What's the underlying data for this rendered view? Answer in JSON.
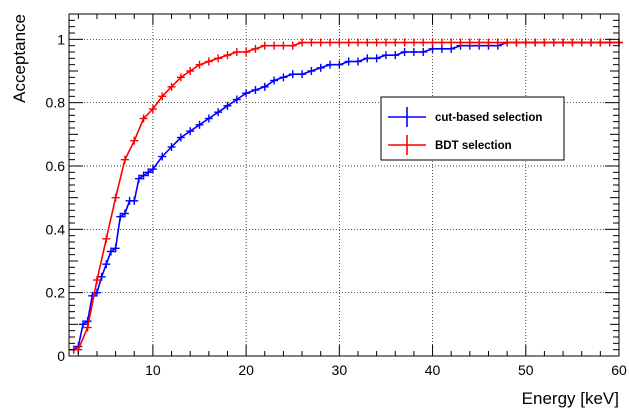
{
  "chart_data": {
    "type": "line",
    "title": "",
    "xlabel": "Energy [keV]",
    "ylabel": "Acceptance",
    "xlim": [
      1,
      60
    ],
    "ylim": [
      0,
      1.08
    ],
    "x_ticks": [
      10,
      20,
      30,
      40,
      50,
      60
    ],
    "x_tick_labels": [
      "10",
      "20",
      "30",
      "40",
      "50",
      "60"
    ],
    "y_ticks": [
      0,
      0.2,
      0.4,
      0.6,
      0.8,
      1.0
    ],
    "y_tick_labels": [
      "0",
      "0.2",
      "0.4",
      "0.6",
      "0.8",
      "1"
    ],
    "grid": true,
    "legend_position": "center-right",
    "series": [
      {
        "name": "cut-based selection",
        "color": "#0000ff",
        "points": [
          [
            1.5,
            0.02
          ],
          [
            2.0,
            0.03
          ],
          [
            2.5,
            0.1
          ],
          [
            3.0,
            0.11
          ],
          [
            3.5,
            0.19
          ],
          [
            4.0,
            0.2
          ],
          [
            4.5,
            0.25
          ],
          [
            5.0,
            0.29
          ],
          [
            5.5,
            0.33
          ],
          [
            6.0,
            0.34
          ],
          [
            6.5,
            0.44
          ],
          [
            7.0,
            0.45
          ],
          [
            7.5,
            0.49
          ],
          [
            8.0,
            0.49
          ],
          [
            8.5,
            0.56
          ],
          [
            9.0,
            0.57
          ],
          [
            9.5,
            0.58
          ],
          [
            10.0,
            0.59
          ],
          [
            11.0,
            0.63
          ],
          [
            12.0,
            0.66
          ],
          [
            13.0,
            0.69
          ],
          [
            14.0,
            0.71
          ],
          [
            15.0,
            0.73
          ],
          [
            16.0,
            0.75
          ],
          [
            17.0,
            0.77
          ],
          [
            18.0,
            0.79
          ],
          [
            19.0,
            0.81
          ],
          [
            20.0,
            0.83
          ],
          [
            21.0,
            0.84
          ],
          [
            22.0,
            0.85
          ],
          [
            23.0,
            0.87
          ],
          [
            24.0,
            0.88
          ],
          [
            25.0,
            0.89
          ],
          [
            26.0,
            0.89
          ],
          [
            27.0,
            0.9
          ],
          [
            28.0,
            0.91
          ],
          [
            29.0,
            0.92
          ],
          [
            30.0,
            0.92
          ],
          [
            31.0,
            0.93
          ],
          [
            32.0,
            0.93
          ],
          [
            33.0,
            0.94
          ],
          [
            34.0,
            0.94
          ],
          [
            35.0,
            0.95
          ],
          [
            36.0,
            0.95
          ],
          [
            37.0,
            0.96
          ],
          [
            38.0,
            0.96
          ],
          [
            39.0,
            0.96
          ],
          [
            40.0,
            0.97
          ],
          [
            41.0,
            0.97
          ],
          [
            42.0,
            0.97
          ],
          [
            43.0,
            0.98
          ],
          [
            44.0,
            0.98
          ],
          [
            45.0,
            0.98
          ],
          [
            46.0,
            0.98
          ],
          [
            47.0,
            0.98
          ],
          [
            48.0,
            0.99
          ],
          [
            49.0,
            0.99
          ],
          [
            50.0,
            0.99
          ],
          [
            51.0,
            0.99
          ],
          [
            52.0,
            0.99
          ],
          [
            53.0,
            0.99
          ],
          [
            54.0,
            0.99
          ],
          [
            55.0,
            0.99
          ],
          [
            56.0,
            0.99
          ],
          [
            57.0,
            0.99
          ],
          [
            58.0,
            0.99
          ],
          [
            59.0,
            0.99
          ],
          [
            60.0,
            0.99
          ]
        ]
      },
      {
        "name": "BDT selection",
        "color": "#ff0000",
        "points": [
          [
            1.5,
            0.02
          ],
          [
            2.0,
            0.02
          ],
          [
            3.0,
            0.09
          ],
          [
            4.0,
            0.24
          ],
          [
            5.0,
            0.37
          ],
          [
            6.0,
            0.5
          ],
          [
            7.0,
            0.62
          ],
          [
            8.0,
            0.68
          ],
          [
            9.0,
            0.75
          ],
          [
            10.0,
            0.78
          ],
          [
            11.0,
            0.82
          ],
          [
            12.0,
            0.85
          ],
          [
            13.0,
            0.88
          ],
          [
            14.0,
            0.9
          ],
          [
            15.0,
            0.92
          ],
          [
            16.0,
            0.93
          ],
          [
            17.0,
            0.94
          ],
          [
            18.0,
            0.95
          ],
          [
            19.0,
            0.96
          ],
          [
            20.0,
            0.96
          ],
          [
            21.0,
            0.97
          ],
          [
            22.0,
            0.98
          ],
          [
            23.0,
            0.98
          ],
          [
            24.0,
            0.98
          ],
          [
            25.0,
            0.98
          ],
          [
            26.0,
            0.99
          ],
          [
            27.0,
            0.99
          ],
          [
            28.0,
            0.99
          ],
          [
            29.0,
            0.99
          ],
          [
            30.0,
            0.99
          ],
          [
            31.0,
            0.99
          ],
          [
            32.0,
            0.99
          ],
          [
            33.0,
            0.99
          ],
          [
            34.0,
            0.99
          ],
          [
            35.0,
            0.99
          ],
          [
            36.0,
            0.99
          ],
          [
            37.0,
            0.99
          ],
          [
            38.0,
            0.99
          ],
          [
            39.0,
            0.99
          ],
          [
            40.0,
            0.99
          ],
          [
            41.0,
            0.99
          ],
          [
            42.0,
            0.99
          ],
          [
            43.0,
            0.99
          ],
          [
            44.0,
            0.99
          ],
          [
            45.0,
            0.99
          ],
          [
            46.0,
            0.99
          ],
          [
            47.0,
            0.99
          ],
          [
            48.0,
            0.99
          ],
          [
            49.0,
            0.99
          ],
          [
            50.0,
            0.99
          ],
          [
            51.0,
            0.99
          ],
          [
            52.0,
            0.99
          ],
          [
            53.0,
            0.99
          ],
          [
            54.0,
            0.99
          ],
          [
            55.0,
            0.99
          ],
          [
            56.0,
            0.99
          ],
          [
            57.0,
            0.99
          ],
          [
            58.0,
            0.99
          ],
          [
            59.0,
            0.99
          ],
          [
            60.0,
            0.99
          ]
        ]
      }
    ]
  }
}
